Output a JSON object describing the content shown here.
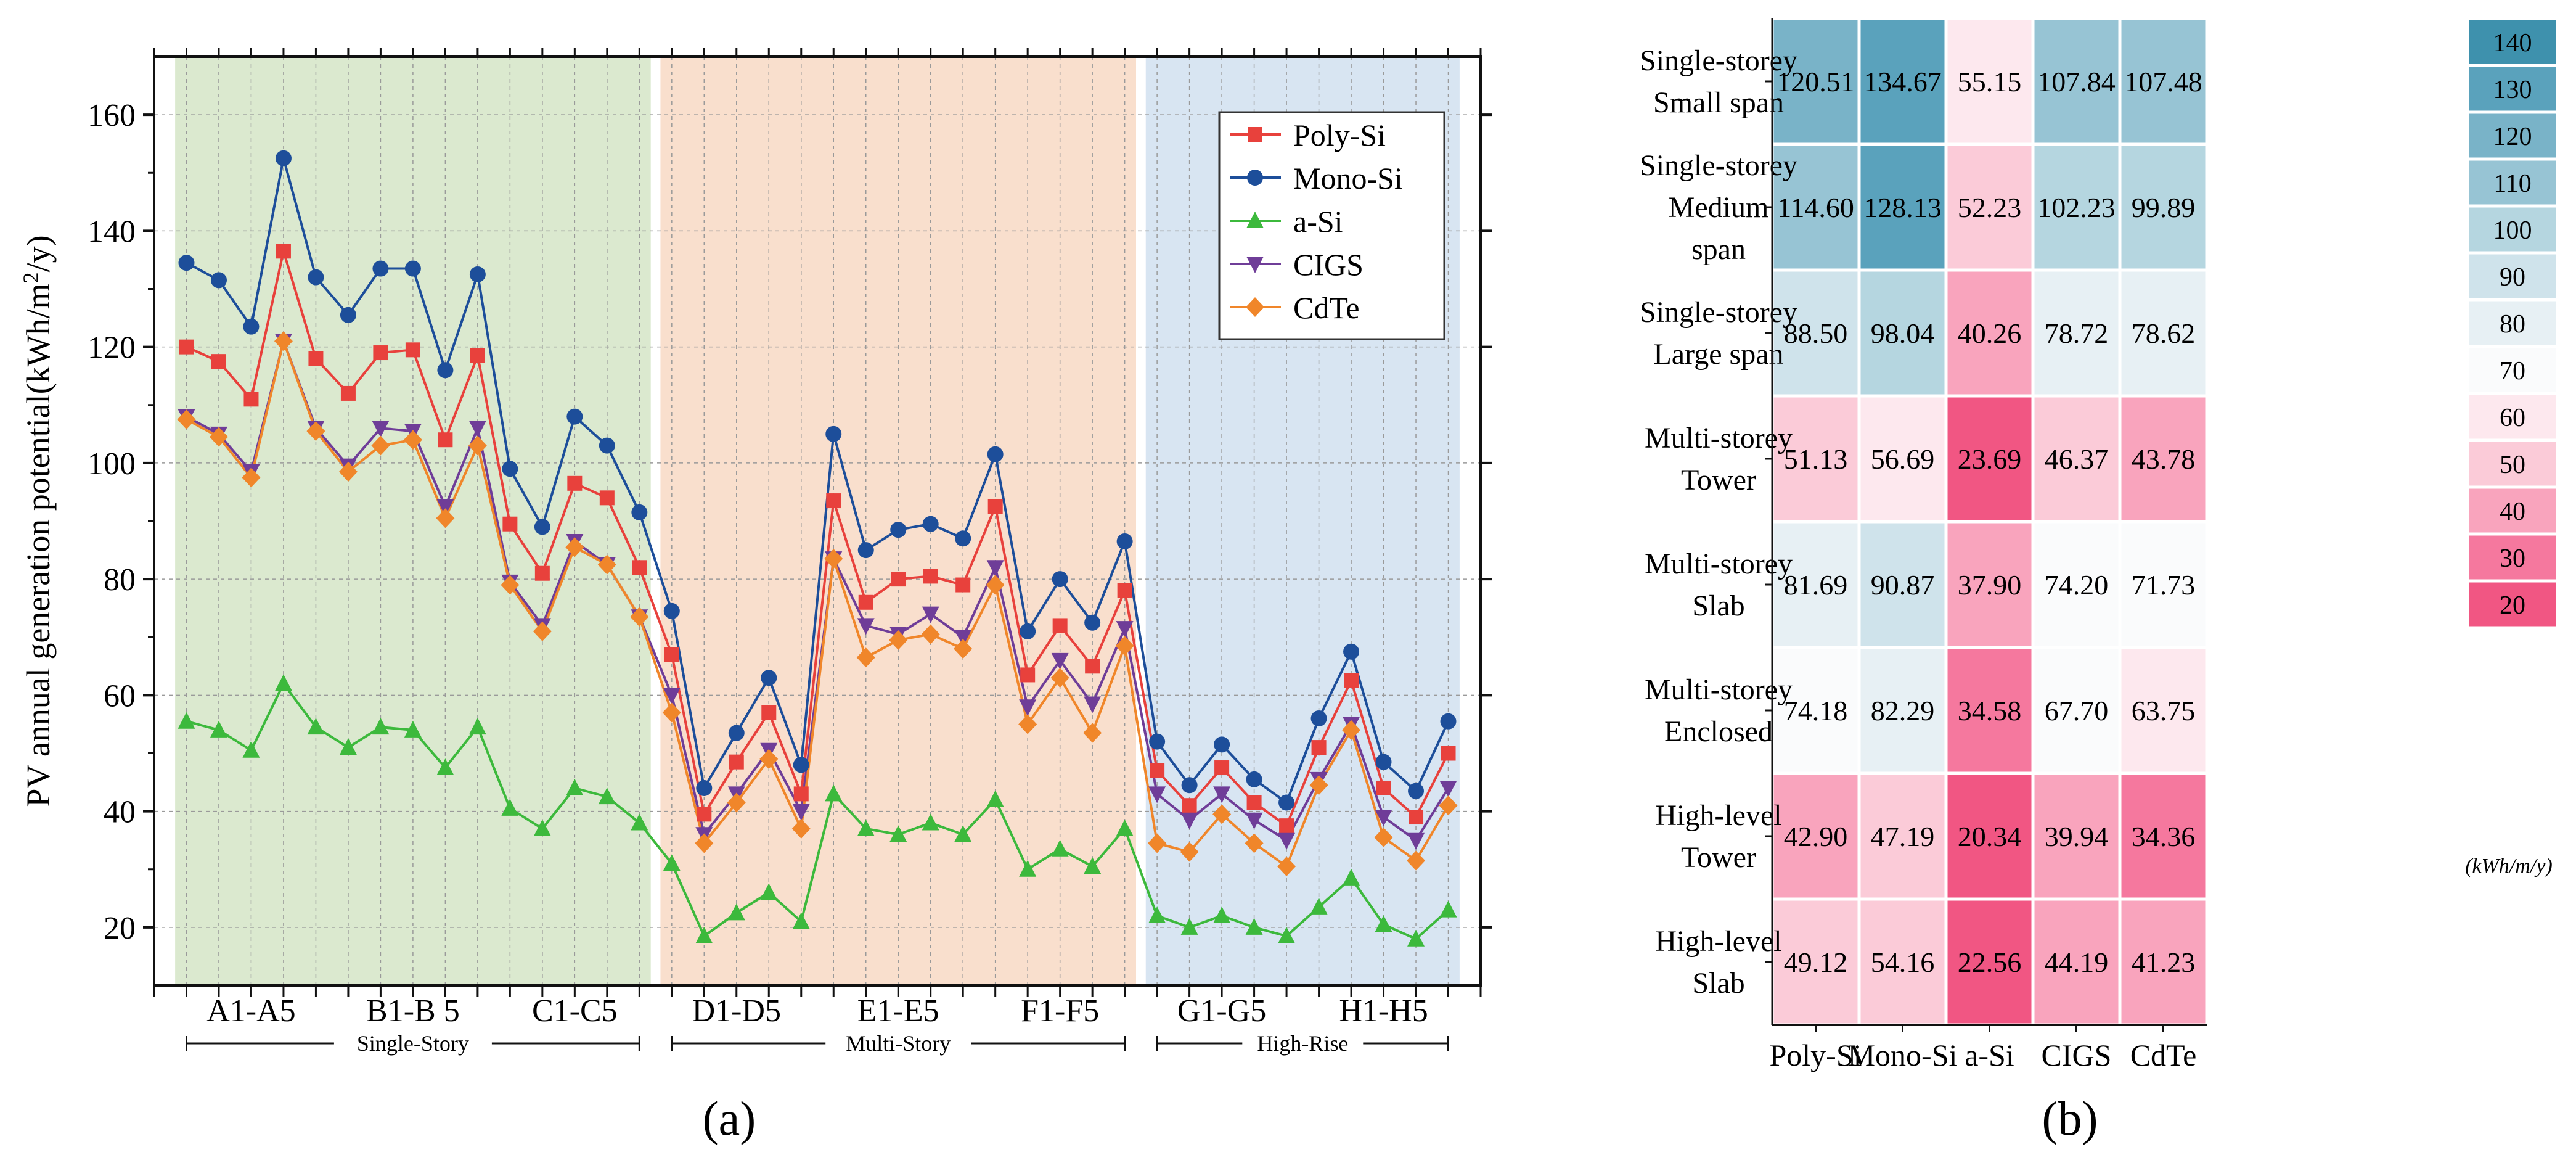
{
  "panel_a": {
    "caption": "(a)",
    "ylabel": "PV annual generation potential(kWh/m",
    "ylabel_sup": "2",
    "ylabel_end": "/y)",
    "groups": [
      "A1-A5",
      "B1-B 5",
      "C1-C5",
      "D1-D5",
      "E1-E5",
      "F1-F5",
      "G1-G5",
      "H1-H5"
    ],
    "categories": [
      "Single-Story",
      "Multi-Story",
      "High-Rise"
    ],
    "band_colors": [
      "#dbe9cf",
      "#f9dfcd",
      "#d8e5f2"
    ]
  },
  "panel_b": {
    "caption": "(b)",
    "unit": "(kWh/m/y)",
    "row_labels": [
      [
        "Single-storey",
        "Small span"
      ],
      [
        "Single-storey",
        "Medium",
        "span"
      ],
      [
        "Single-storey",
        "Large span"
      ],
      [
        "Multi-storey",
        "Tower"
      ],
      [
        "Multi-storey",
        "Slab"
      ],
      [
        "Multi-storey",
        "Enclosed"
      ],
      [
        "High-level",
        "Tower"
      ],
      [
        "High-level",
        "Slab"
      ]
    ],
    "col_labels": [
      "Poly-Si",
      "Mono-Si",
      "a-Si",
      "CIGS",
      "CdTe"
    ],
    "cells": [
      [
        "120.51",
        "134.67",
        "55.15",
        "107.84",
        "107.48"
      ],
      [
        "114.60",
        "128.13",
        "52.23",
        "102.23",
        "99.89"
      ],
      [
        "88.50",
        "98.04",
        "40.26",
        "78.72",
        "78.62"
      ],
      [
        "51.13",
        "56.69",
        "23.69",
        "46.37",
        "43.78"
      ],
      [
        "81.69",
        "90.87",
        "37.90",
        "74.20",
        "71.73"
      ],
      [
        "74.18",
        "82.29",
        "34.58",
        "67.70",
        "63.75"
      ],
      [
        "42.90",
        "47.19",
        "20.34",
        "39.94",
        "34.36"
      ],
      [
        "49.12",
        "54.16",
        "22.56",
        "44.19",
        "41.23"
      ]
    ],
    "legend_levels": [
      "140",
      "130",
      "120",
      "110",
      "100",
      "90",
      "80",
      "70",
      "60",
      "50",
      "40",
      "30",
      "20"
    ]
  },
  "chart_data": [
    {
      "type": "line",
      "title": "",
      "xlabel": "",
      "ylabel": "PV annual generation potential(kWh/m2/y)",
      "ylim": [
        10,
        170
      ],
      "yticks": [
        20,
        40,
        60,
        80,
        100,
        120,
        140,
        160
      ],
      "x": [
        1,
        2,
        3,
        4,
        5,
        6,
        7,
        8,
        9,
        10,
        11,
        12,
        13,
        14,
        15,
        16,
        17,
        18,
        19,
        20,
        21,
        22,
        23,
        24,
        25,
        26,
        27,
        28,
        29,
        30,
        31,
        32,
        33,
        34,
        35,
        36,
        37,
        38,
        39,
        40
      ],
      "xlim": [
        0,
        41
      ],
      "x_group_labels": [
        {
          "label": "A1-A5",
          "range": [
            1,
            5
          ]
        },
        {
          "label": "B1-B 5",
          "range": [
            6,
            10
          ]
        },
        {
          "label": "C1-C5",
          "range": [
            11,
            15
          ]
        },
        {
          "label": "D1-D5",
          "range": [
            16,
            20
          ]
        },
        {
          "label": "E1-E5",
          "range": [
            21,
            25
          ]
        },
        {
          "label": "F1-F5",
          "range": [
            26,
            30
          ]
        },
        {
          "label": "G1-G5",
          "range": [
            31,
            35
          ]
        },
        {
          "label": "H1-H5",
          "range": [
            36,
            40
          ]
        }
      ],
      "x_categories": [
        {
          "label": "Single-Story",
          "range": [
            1,
            15
          ]
        },
        {
          "label": "Multi-Story",
          "range": [
            16,
            30
          ]
        },
        {
          "label": "High-Rise",
          "range": [
            31,
            40
          ]
        }
      ],
      "legend_position": "top-right",
      "series": [
        {
          "name": "Poly-Si",
          "color": "#e8413c",
          "marker": "square",
          "values": [
            120,
            117.5,
            111,
            136.5,
            118,
            112,
            119,
            119.5,
            104,
            118.5,
            89.5,
            81,
            96.5,
            94,
            82,
            67,
            39.5,
            48.5,
            57,
            43,
            93.5,
            76,
            80,
            80.5,
            79,
            92.5,
            63.5,
            72,
            65,
            78,
            47,
            41,
            47.5,
            41.5,
            37.5,
            51,
            62.5,
            44,
            39,
            50
          ]
        },
        {
          "name": "Mono-Si",
          "color": "#1d4e9a",
          "marker": "circle",
          "values": [
            134.5,
            131.5,
            123.5,
            152.5,
            132,
            125.5,
            133.5,
            133.5,
            116,
            132.5,
            99,
            89,
            108,
            103,
            91.5,
            74.5,
            44,
            53.5,
            63,
            48,
            105,
            85,
            88.5,
            89.5,
            87,
            101.5,
            71,
            80,
            72.5,
            86.5,
            52,
            44.5,
            51.5,
            45.5,
            41.5,
            56,
            67.5,
            48.5,
            43.5,
            55.5
          ]
        },
        {
          "name": "a-Si",
          "color": "#3cb93c",
          "marker": "triangle",
          "values": [
            55.5,
            54,
            50.5,
            62,
            54.5,
            51,
            54.5,
            54,
            47.5,
            54.5,
            40.5,
            37,
            44,
            42.5,
            38,
            31,
            18.5,
            22.5,
            26,
            21,
            43,
            37,
            36,
            38,
            36,
            42,
            30,
            33.5,
            30.5,
            37,
            22,
            20,
            22,
            20,
            18.5,
            23.5,
            28.5,
            20.5,
            18,
            23
          ]
        },
        {
          "name": "CIGS",
          "color": "#6f3d98",
          "marker": "triangle-down",
          "values": [
            108,
            105,
            98.5,
            121,
            106,
            99.5,
            106,
            105.5,
            92.5,
            106,
            79.5,
            72,
            86.5,
            82.5,
            73.5,
            60,
            36,
            43,
            50.5,
            40,
            83.5,
            72,
            70.5,
            74,
            70,
            82,
            58,
            66,
            58.5,
            71.5,
            43,
            38.5,
            43,
            38.5,
            35,
            45.5,
            55,
            39,
            35,
            44
          ]
        },
        {
          "name": "CdTe",
          "color": "#f0862a",
          "marker": "diamond",
          "values": [
            107.5,
            104.5,
            97.5,
            121,
            105.5,
            98.5,
            103,
            104,
            90.5,
            103,
            79,
            71,
            85.5,
            82.5,
            73.5,
            57,
            34.5,
            41.5,
            49,
            37,
            83.5,
            66.5,
            69.5,
            70.5,
            68,
            79,
            55,
            63,
            53.5,
            68.5,
            34.5,
            33,
            39.5,
            34.5,
            30.5,
            44.5,
            54,
            35.5,
            31.5,
            41
          ]
        }
      ]
    },
    {
      "type": "heatmap",
      "title": "",
      "rows": [
        "Single-storey Small span",
        "Single-storey Medium span",
        "Single-storey Large span",
        "Multi-storey Tower",
        "Multi-storey Slab",
        "Multi-storey Enclosed",
        "High-level Tower",
        "High-level Slab"
      ],
      "columns": [
        "Poly-Si",
        "Mono-Si",
        "a-Si",
        "CIGS",
        "CdTe"
      ],
      "values": [
        [
          120.51,
          134.67,
          55.15,
          107.84,
          107.48
        ],
        [
          114.6,
          128.13,
          52.23,
          102.23,
          99.89
        ],
        [
          88.5,
          98.04,
          40.26,
          78.72,
          78.62
        ],
        [
          51.13,
          56.69,
          23.69,
          46.37,
          43.78
        ],
        [
          81.69,
          90.87,
          37.9,
          74.2,
          71.73
        ],
        [
          74.18,
          82.29,
          34.58,
          67.7,
          63.75
        ],
        [
          42.9,
          47.19,
          20.34,
          39.94,
          34.36
        ],
        [
          49.12,
          54.16,
          22.56,
          44.19,
          41.23
        ]
      ],
      "colorbar": {
        "levels": [
          140,
          130,
          120,
          110,
          100,
          90,
          80,
          70,
          60,
          50,
          40,
          30,
          20
        ],
        "colors": [
          "#3e91ad",
          "#5aa2bc",
          "#79b3c8",
          "#97c4d4",
          "#b5d6e0",
          "#cfe3eb",
          "#e7f0f4",
          "#fafbfc",
          "#fde8ee",
          "#fbcbd8",
          "#f9a4bd",
          "#f5789e",
          "#f15683"
        ],
        "unit": "(kWh/m/y)"
      }
    }
  ]
}
